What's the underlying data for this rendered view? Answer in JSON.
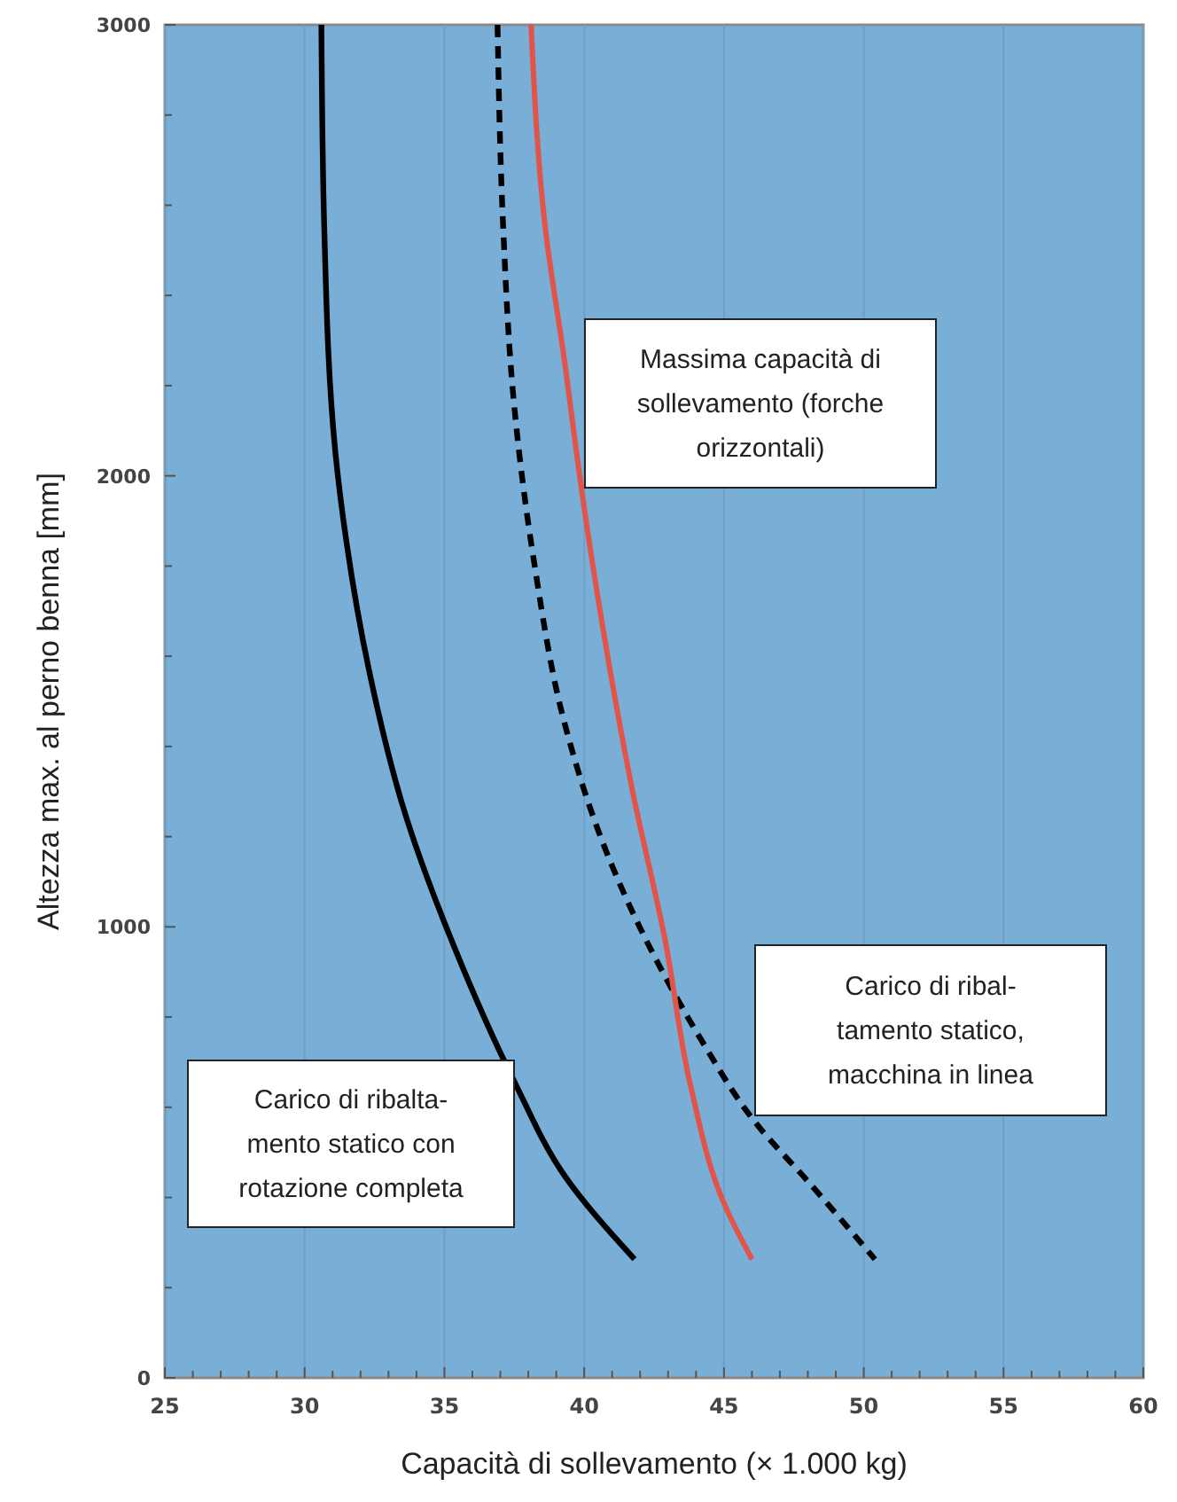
{
  "chart_data": {
    "type": "line",
    "xlabel": "Capacità di sollevamento (× 1.000 kg)",
    "ylabel": "Altezza max. al perno benna [mm]",
    "xlim": [
      25,
      60
    ],
    "ylim": [
      0,
      3000
    ],
    "xticks": [
      25,
      {
        "value": 26,
        "label": null
      },
      {
        "value": 27,
        "label": null
      },
      {
        "value": 28,
        "label": null
      },
      {
        "value": 29,
        "label": null
      },
      30,
      {
        "value": 31,
        "label": null
      },
      {
        "value": 32,
        "label": null
      },
      {
        "value": 33,
        "label": null
      },
      {
        "value": 34,
        "label": null
      },
      35,
      {
        "value": 36,
        "label": null
      },
      {
        "value": 37,
        "label": null
      },
      {
        "value": 38,
        "label": null
      },
      {
        "value": 39,
        "label": null
      },
      40,
      {
        "value": 41,
        "label": null
      },
      {
        "value": 42,
        "label": null
      },
      {
        "value": 43,
        "label": null
      },
      {
        "value": 44,
        "label": null
      },
      45,
      {
        "value": 46,
        "label": null
      },
      {
        "value": 47,
        "label": null
      },
      {
        "value": 48,
        "label": null
      },
      {
        "value": 49,
        "label": null
      },
      50,
      {
        "value": 51,
        "label": null
      },
      {
        "value": 52,
        "label": null
      },
      {
        "value": 53,
        "label": null
      },
      {
        "value": 54,
        "label": null
      },
      55,
      {
        "value": 56,
        "label": null
      },
      {
        "value": 57,
        "label": null
      },
      {
        "value": 58,
        "label": null
      },
      {
        "value": 59,
        "label": null
      },
      60
    ],
    "yticks": [
      0,
      {
        "value": 200,
        "label": null
      },
      {
        "value": 400,
        "label": null
      },
      {
        "value": 600,
        "label": null
      },
      {
        "value": 800,
        "label": null
      },
      1000,
      {
        "value": 1200,
        "label": null
      },
      {
        "value": 1400,
        "label": null
      },
      {
        "value": 1600,
        "label": null
      },
      {
        "value": 1800,
        "label": null
      },
      2000,
      {
        "value": 2200,
        "label": null
      },
      {
        "value": 2400,
        "label": null
      },
      {
        "value": 2600,
        "label": null
      },
      {
        "value": 2800,
        "label": null
      },
      3000
    ],
    "grid": "x",
    "marker": "none",
    "series": [
      {
        "name": "Carico di ribalta-\nmento statico con\nrotazione completa",
        "color": "#000000",
        "line_style": "solid",
        "x": [
          30.6,
          30.7,
          31.1,
          31.5,
          32.3,
          33.6,
          35.4,
          37.5,
          39.3,
          41.8
        ],
        "values": [
          3000,
          2554,
          2052,
          1852,
          1570,
          1250,
          948,
          657,
          448,
          263
        ]
      },
      {
        "name": "Carico di ribal-\ntamento statico,\nmacchina in linea",
        "color": "#000000",
        "line_style": "dashed",
        "x": [
          36.9,
          37.1,
          37.5,
          38.2,
          39.3,
          40.9,
          42.9,
          44.2,
          46.1,
          48.1,
          50.4
        ],
        "values": [
          3000,
          2554,
          2153,
          1812,
          1451,
          1150,
          889,
          748,
          568,
          429,
          263
        ]
      },
      {
        "name": "Massima capacità di\nsollevamento (forche\norizzontali)",
        "color": "#e0544a",
        "line_style": "solid",
        "x": [
          38.1,
          38.6,
          39.3,
          39.9,
          40.7,
          41.7,
          42.9,
          43.8,
          45.0,
          46.0
        ],
        "values": [
          3000,
          2554,
          2253,
          1972,
          1651,
          1310,
          969,
          649,
          387,
          263
        ]
      }
    ]
  }
}
